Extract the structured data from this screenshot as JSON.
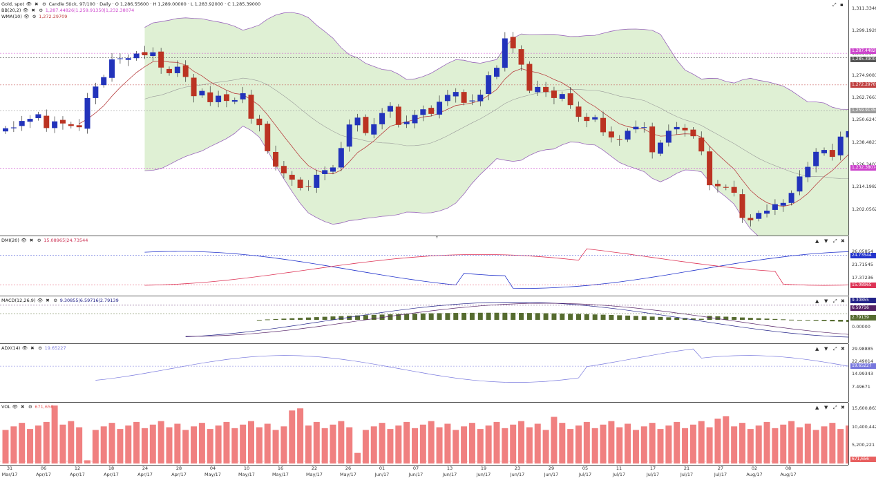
{
  "header": {
    "main": "Gold, spot",
    "main_desc": "Candle Stick, 97/100 · Daily · O 1,286.55600 · H 1,289.00000 · L 1,283.92000 · C 1,285.39000",
    "bb_label": "BB(20,2)",
    "bb_values": "1,287.44826|1,259.91350|1,232.38074",
    "wma_label": "WMA(10)",
    "wma_value": "1,272.29709",
    "dmi_label": "DMI(20)",
    "dmi_values": "15.08965|24.73544",
    "macd_label": "MACD(12,26,9)",
    "macd_values": "9.30855|6.59716|2.79139",
    "adx_label": "ADX(14)",
    "adx_value": "19.65227",
    "vol_label": "VOL",
    "vol_value": "671,656"
  },
  "price_axis": {
    "ticks": [
      "1,311.33466",
      "1,299.19200",
      "1,286.85740",
      "1,274.90811",
      "1,262.76612",
      "1,250.62415",
      "1,238.48217",
      "1,226.34015",
      "1,214.19820",
      "1,202.05622"
    ],
    "tags": [
      {
        "text": "1,287.44826",
        "color": "#cc44cc"
      },
      {
        "text": "1,285.39000",
        "color": "#555555"
      },
      {
        "text": "1,272.29709",
        "color": "#c04040"
      },
      {
        "text": "1,259.91350",
        "color": "#999999"
      },
      {
        "text": "1,232.38074",
        "color": "#cc44cc"
      }
    ]
  },
  "dmi_axis": {
    "ticks": [
      "26.05854",
      "21.71545",
      "17.37236"
    ],
    "tags": [
      {
        "text": "24.73544",
        "color": "#2233cc"
      },
      {
        "text": "15.08965",
        "color": "#dd3355"
      }
    ]
  },
  "macd_axis": {
    "ticks": [
      "0.00000"
    ],
    "tags": [
      {
        "text": "9.30855",
        "color": "#222288"
      },
      {
        "text": "6.59716",
        "color": "#552266"
      },
      {
        "text": "2.79139",
        "color": "#556b2f"
      }
    ]
  },
  "adx_axis": {
    "ticks": [
      "29.98885",
      "22.49014",
      "14.99343",
      "7.49671"
    ],
    "tags": [
      {
        "text": "19.65227",
        "color": "#7777dd"
      }
    ]
  },
  "vol_axis": {
    "ticks": [
      "15,600,863",
      "10,400,442",
      "5,200,221"
    ],
    "tags": [
      {
        "text": "671,656",
        "color": "#e86060"
      }
    ]
  },
  "x_labels": [
    {
      "d": "31",
      "m": "Mar/17"
    },
    {
      "d": "06",
      "m": "Apr/17"
    },
    {
      "d": "12",
      "m": "Apr/17"
    },
    {
      "d": "18",
      "m": "Apr/17"
    },
    {
      "d": "24",
      "m": "Apr/17"
    },
    {
      "d": "28",
      "m": "Apr/17"
    },
    {
      "d": "04",
      "m": "May/17"
    },
    {
      "d": "10",
      "m": "May/17"
    },
    {
      "d": "16",
      "m": "May/17"
    },
    {
      "d": "22",
      "m": "May/17"
    },
    {
      "d": "26",
      "m": "May/17"
    },
    {
      "d": "01",
      "m": "Jun/17"
    },
    {
      "d": "07",
      "m": "Jun/17"
    },
    {
      "d": "13",
      "m": "Jun/17"
    },
    {
      "d": "19",
      "m": "Jun/17"
    },
    {
      "d": "23",
      "m": "Jun/17"
    },
    {
      "d": "29",
      "m": "Jun/17"
    },
    {
      "d": "05",
      "m": "Jul/17"
    },
    {
      "d": "11",
      "m": "Jul/17"
    },
    {
      "d": "17",
      "m": "Jul/17"
    },
    {
      "d": "21",
      "m": "Jul/17"
    },
    {
      "d": "27",
      "m": "Jul/17"
    },
    {
      "d": "02",
      "m": "Aug/17"
    },
    {
      "d": "08",
      "m": "Aug/17"
    }
  ],
  "colors": {
    "up": "#2233bb",
    "down": "#bb3322",
    "bb_fill": "#dff0d4",
    "bb_line": "#9966bb",
    "wma": "#b84040",
    "mid": "#999999",
    "macd_hist": "#556b2f",
    "vol": "#f08080"
  },
  "chart_data": {
    "type": "candlestick",
    "ylim": [
      1202.05622,
      1311.33466
    ],
    "closes": [
      1251.5,
      1251.9,
      1255.0,
      1256.0,
      1258.2,
      1251.6,
      1254.8,
      1253.8,
      1252.6,
      1252.0,
      1266.0,
      1271.5,
      1276.0,
      1284.5,
      1285.0,
      1285.1,
      1287.3,
      1286.5,
      1287.9,
      1280.6,
      1277.9,
      1281.0,
      1276.1,
      1266.9,
      1269.4,
      1264.0,
      1267.1,
      1264.6,
      1265.0,
      1268.3,
      1256.1,
      1253.0,
      1240.5,
      1233.1,
      1229.9,
      1226.9,
      1222.9,
      1223.3,
      1229.2,
      1231.4,
      1232.7,
      1242.0,
      1253.3,
      1256.6,
      1249.2,
      1253.4,
      1258.8,
      1262.2,
      1253.1,
      1254.6,
      1257.9,
      1260.6,
      1258.4,
      1264.2,
      1267.5,
      1268.9,
      1263.7,
      1264.8,
      1267.6,
      1276.9,
      1280.5,
      1294.6,
      1289.8,
      1282.0,
      1269.5,
      1271.3,
      1268.9,
      1266.0,
      1267.9,
      1262.6,
      1257.0,
      1255.0,
      1256.8,
      1249.6,
      1247.1,
      1246.1,
      1250.3,
      1252.2,
      1252.0,
      1240.0,
      1244.6,
      1250.3,
      1252.1,
      1250.5,
      1247.7,
      1240.4,
      1224.2,
      1223.7,
      1223.0,
      1220.6,
      1208.5,
      1207.4,
      1210.9,
      1212.0,
      1215.1,
      1215.7,
      1220.5,
      1228.4,
      1233.0,
      1240.2,
      1241.1,
      1237.8,
      1247.5,
      1250.1,
      1255.6,
      1255.4,
      1251.5,
      1255.1,
      1255.9,
      1265.2,
      1268.2,
      1265.2,
      1260.0,
      1262.3,
      1267.8,
      1269.9,
      1270.0,
      1272.7,
      1275.4,
      1286.0,
      1285.4
    ]
  }
}
